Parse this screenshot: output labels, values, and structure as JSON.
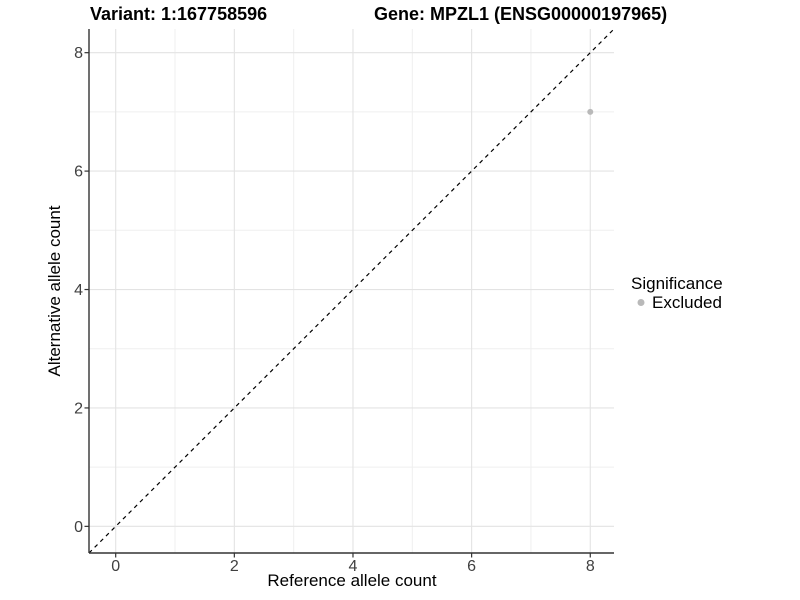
{
  "chart_data": {
    "type": "scatter",
    "titles": {
      "left": "Variant: 1:167758596",
      "right": "Gene: MPZL1 (ENSG00000197965)"
    },
    "xlabel": "Reference allele count",
    "ylabel": "Alternative allele count",
    "xlim": [
      -0.45,
      8.4
    ],
    "ylim": [
      -0.45,
      8.4
    ],
    "xticks": [
      0,
      2,
      4,
      6,
      8
    ],
    "yticks": [
      0,
      2,
      4,
      6,
      8
    ],
    "xminor": [
      1,
      3,
      5,
      7
    ],
    "yminor": [
      1,
      3,
      5,
      7
    ],
    "grid": {
      "major": true,
      "minor": true
    },
    "reference_line": {
      "kind": "identity",
      "equation": "y = x",
      "style": "dashed",
      "color": "#000000"
    },
    "series": [
      {
        "name": "Excluded",
        "color": "#b9b9b9",
        "points": [
          {
            "x": 8,
            "y": 7
          }
        ]
      }
    ],
    "legend": {
      "title": "Significance",
      "position": "right",
      "items": [
        {
          "label": "Excluded",
          "color": "#b9b9b9",
          "marker": "circle"
        }
      ]
    },
    "colors": {
      "grid_major": "#e3e3e3",
      "grid_minor": "#efefef",
      "axis_line": "#333333",
      "tick_mark": "#333333",
      "tick_label": "#404040",
      "text": "#000000"
    }
  }
}
